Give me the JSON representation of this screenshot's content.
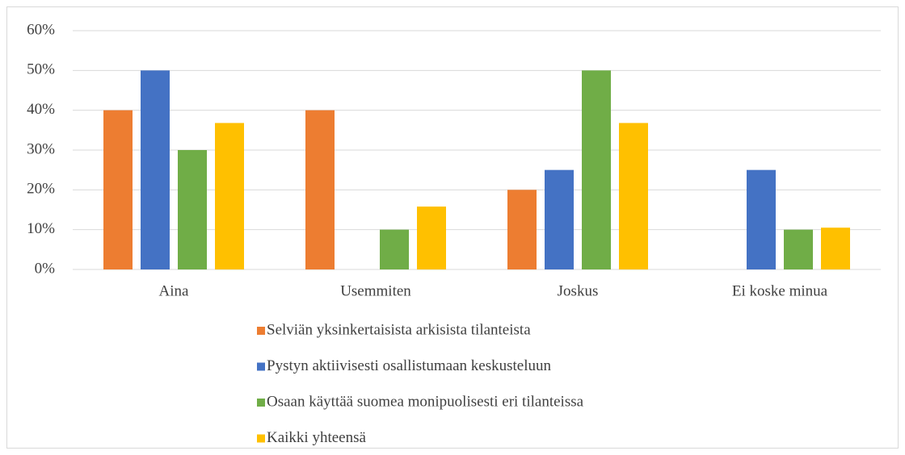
{
  "chart_data": {
    "type": "bar",
    "categories": [
      "Aina",
      "Usemmiten",
      "Joskus",
      "Ei koske minua"
    ],
    "series": [
      {
        "name": "Selviän yksinkertaisista arkisista tilanteista",
        "color": "#ed7d31",
        "values": [
          40,
          40,
          20,
          0
        ]
      },
      {
        "name": "Pystyn aktiivisesti osallistumaan keskusteluun",
        "color": "#4472c4",
        "values": [
          50,
          0,
          25,
          25
        ]
      },
      {
        "name": "Osaan käyttää suomea monipuolisesti eri tilanteissa",
        "color": "#70ad47",
        "values": [
          30,
          10,
          50,
          10
        ]
      },
      {
        "name": "Kaikki yhteensä",
        "color": "#ffc000",
        "values": [
          36.8,
          15.8,
          36.8,
          10.5
        ]
      }
    ],
    "ylim": [
      0,
      60
    ],
    "yticks": [
      {
        "value": 0,
        "label": "0%"
      },
      {
        "value": 10,
        "label": "10%"
      },
      {
        "value": 20,
        "label": "20%"
      },
      {
        "value": 30,
        "label": "30%"
      },
      {
        "value": 40,
        "label": "40%"
      },
      {
        "value": 50,
        "label": "50%"
      },
      {
        "value": 60,
        "label": "60%"
      }
    ],
    "grid": true,
    "legend": "bottom"
  }
}
